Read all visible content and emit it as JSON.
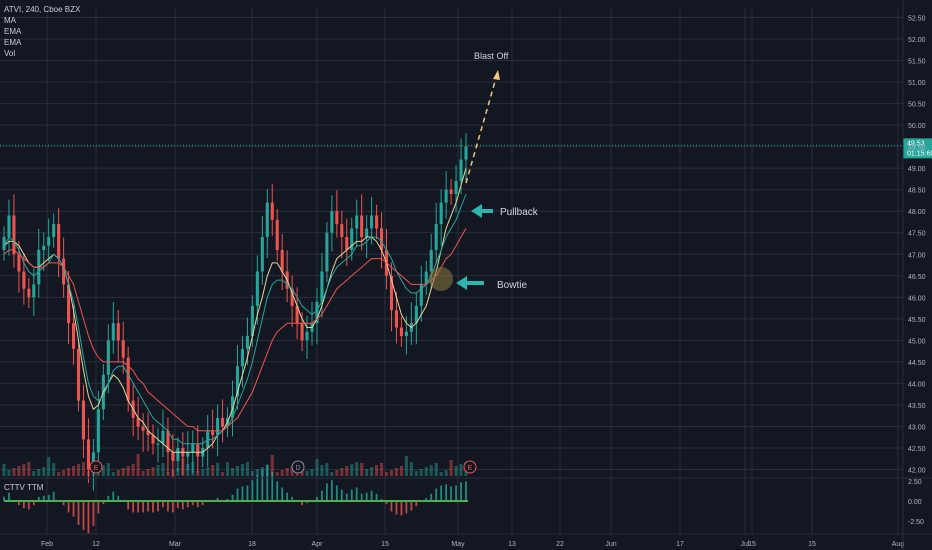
{
  "legend": {
    "symbol_line": "ATVI, 240, Cboe BZX",
    "ma": "MA",
    "ema1": "EMA",
    "ema2": "EMA",
    "vol": "Vol"
  },
  "indicator": {
    "name": "CTTV TTM"
  },
  "annotations": {
    "blast_off": "Blast Off",
    "pullback": "Pullback",
    "bowtie": "Bowtie"
  },
  "price_tag": {
    "price": "49.53",
    "countdown": "01:15:60"
  },
  "event_markers": [
    "E",
    "D",
    "E"
  ],
  "colors": {
    "background": "#131722",
    "grid": "#2a2e39",
    "up": "#26a69a",
    "down": "#ef5350",
    "ma": "#e3d69a",
    "ema_fast": "#26a69a",
    "ema_slow": "#ef5350",
    "arrow": "#2bb5ae",
    "blast_arrow": "#f0c67a"
  },
  "chart_data": {
    "type": "candlestick",
    "title": "ATVI, 240, Cboe BZX",
    "price_axis": {
      "ticks": [
        "52.50",
        "52.00",
        "51.50",
        "51.00",
        "50.50",
        "50.00",
        "49.50",
        "49.00",
        "48.50",
        "48.00",
        "47.50",
        "47.00",
        "46.50",
        "46.00",
        "45.50",
        "45.00",
        "44.50",
        "44.00",
        "43.50",
        "43.00",
        "42.50",
        "42.00"
      ],
      "range": [
        41.9,
        52.7
      ]
    },
    "time_axis": {
      "ticks": [
        "Feb",
        "12",
        "Mar",
        "18",
        "Apr",
        "15",
        "May",
        "13",
        "22",
        "Jun",
        "17",
        "15",
        "Jul",
        "15",
        "Aug"
      ]
    },
    "current_price": 49.53,
    "candles_close_approx": [
      47.4,
      47.9,
      47.0,
      46.6,
      46.2,
      46.0,
      46.3,
      47.1,
      47.2,
      47.4,
      47.7,
      46.9,
      46.3,
      45.4,
      44.8,
      43.6,
      42.7,
      42.0,
      42.4,
      43.4,
      44.2,
      45.0,
      45.4,
      45.0,
      44.6,
      43.6,
      43.2,
      43.0,
      42.9,
      42.8,
      42.6,
      42.6,
      42.9,
      42.4,
      42.2,
      42.5,
      42.3,
      42.4,
      42.6,
      42.3,
      42.5,
      42.9,
      42.8,
      43.2,
      43.0,
      43.2,
      43.7,
      44.4,
      44.8,
      45.1,
      45.8,
      46.6,
      47.4,
      48.2,
      47.8,
      47.1,
      46.6,
      46.2,
      45.8,
      45.4,
      45.0,
      45.2,
      45.4,
      45.9,
      46.6,
      47.5,
      48.0,
      47.7,
      47.4,
      47.1,
      47.6,
      47.9,
      47.4,
      47.6,
      47.9,
      47.6,
      47.1,
      46.5,
      45.7,
      45.3,
      45.1,
      45.2,
      45.4,
      45.8,
      46.3,
      46.6,
      47.1,
      47.7,
      48.2,
      48.5,
      48.4,
      48.7,
      49.2,
      49.5
    ],
    "ma": [
      47.2,
      47.3,
      47.3,
      47.2,
      47.0,
      46.8,
      46.7,
      46.7,
      46.8,
      46.9,
      47.0,
      46.9,
      46.7,
      46.3,
      45.7,
      45.0,
      44.3,
      43.7,
      43.4,
      43.5,
      43.8,
      44.0,
      44.2,
      44.1,
      43.9,
      43.6,
      43.4,
      43.2,
      43.1,
      42.9,
      42.8,
      42.7,
      42.6,
      42.5,
      42.4,
      42.4,
      42.4,
      42.4,
      42.4,
      42.4,
      42.4,
      42.5,
      42.6,
      42.8,
      42.9,
      43.1,
      43.4,
      43.8,
      44.2,
      44.6,
      45.1,
      45.6,
      46.0,
      46.5,
      46.8,
      46.8,
      46.6,
      46.4,
      46.1,
      45.8,
      45.5,
      45.3,
      45.3,
      45.5,
      45.8,
      46.2,
      46.6,
      46.9,
      47.0,
      47.1,
      47.2,
      47.3,
      47.3,
      47.4,
      47.4,
      47.3,
      47.1,
      46.8,
      46.4,
      46.0,
      45.6,
      45.4,
      45.3,
      45.4,
      45.6,
      45.8,
      46.2,
      46.6,
      47.1,
      47.6,
      47.9,
      48.2,
      48.6,
      49.0
    ],
    "ema_fast": [
      47.2,
      47.4,
      47.3,
      47.1,
      46.8,
      46.6,
      46.5,
      46.6,
      46.7,
      46.8,
      47.0,
      46.9,
      46.7,
      46.3,
      45.9,
      45.3,
      44.6,
      44.0,
      43.7,
      43.6,
      43.7,
      44.0,
      44.3,
      44.4,
      44.4,
      44.2,
      44.0,
      43.8,
      43.6,
      43.4,
      43.2,
      43.1,
      43.0,
      42.9,
      42.7,
      42.7,
      42.6,
      42.6,
      42.6,
      42.6,
      42.6,
      42.7,
      42.7,
      42.8,
      42.9,
      43.0,
      43.2,
      43.5,
      43.8,
      44.1,
      44.5,
      45.0,
      45.5,
      46.0,
      46.3,
      46.4,
      46.4,
      46.3,
      46.2,
      46.0,
      45.8,
      45.7,
      45.6,
      45.7,
      45.9,
      46.2,
      46.5,
      46.7,
      46.8,
      46.9,
      47.0,
      47.2,
      47.2,
      47.3,
      47.4,
      47.4,
      47.3,
      47.1,
      46.9,
      46.6,
      46.4,
      46.2,
      46.1,
      46.1,
      46.2,
      46.3,
      46.5,
      46.8,
      47.1,
      47.4,
      47.6,
      47.8,
      48.1,
      48.4
    ],
    "ema_slow": [
      47.0,
      47.1,
      47.1,
      47.0,
      46.9,
      46.8,
      46.7,
      46.7,
      46.7,
      46.8,
      46.8,
      46.8,
      46.7,
      46.5,
      46.3,
      45.9,
      45.5,
      45.1,
      44.8,
      44.6,
      44.5,
      44.5,
      44.5,
      44.5,
      44.5,
      44.4,
      44.3,
      44.1,
      44.0,
      43.8,
      43.7,
      43.6,
      43.5,
      43.4,
      43.3,
      43.2,
      43.1,
      43.0,
      43.0,
      42.9,
      42.9,
      42.9,
      42.9,
      42.9,
      42.9,
      43.0,
      43.1,
      43.2,
      43.4,
      43.6,
      43.8,
      44.1,
      44.4,
      44.7,
      45.0,
      45.2,
      45.3,
      45.4,
      45.4,
      45.4,
      45.4,
      45.4,
      45.4,
      45.5,
      45.6,
      45.8,
      46.0,
      46.2,
      46.3,
      46.4,
      46.5,
      46.6,
      46.7,
      46.8,
      46.9,
      46.9,
      46.9,
      46.8,
      46.7,
      46.6,
      46.5,
      46.4,
      46.3,
      46.3,
      46.3,
      46.3,
      46.4,
      46.5,
      46.7,
      46.9,
      47.0,
      47.2,
      47.4,
      47.6
    ],
    "indicator_axis": {
      "ticks": [
        "2.50",
        "0.00",
        "-2.50"
      ]
    }
  }
}
